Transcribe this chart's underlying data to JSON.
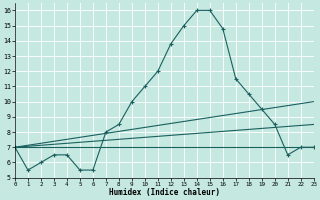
{
  "xlabel": "Humidex (Indice chaleur)",
  "bg_color": "#c5e8e0",
  "grid_color": "#ffffff",
  "line_color": "#1a6060",
  "line1_x": [
    0,
    1,
    2,
    3,
    4,
    5,
    6,
    7,
    8,
    9,
    10,
    11,
    12,
    13,
    14,
    15,
    16,
    17,
    18,
    19,
    20,
    21,
    22,
    23
  ],
  "line1_y": [
    7.0,
    5.5,
    6.0,
    6.5,
    6.5,
    5.5,
    5.5,
    8.0,
    8.5,
    10.0,
    11.0,
    12.0,
    13.8,
    15.0,
    16.0,
    16.0,
    14.8,
    11.5,
    10.5,
    9.5,
    8.5,
    6.5,
    7.0,
    7.0
  ],
  "line2_x": [
    0,
    23
  ],
  "line2_y": [
    7.0,
    10.0
  ],
  "line3_x": [
    0,
    23
  ],
  "line3_y": [
    7.0,
    8.5
  ],
  "line4_x": [
    0,
    23
  ],
  "line4_y": [
    7.0,
    7.0
  ],
  "xlim": [
    0,
    23
  ],
  "ylim": [
    5,
    16.5
  ],
  "yticks": [
    5,
    6,
    7,
    8,
    9,
    10,
    11,
    12,
    13,
    14,
    15,
    16
  ],
  "xticks": [
    0,
    1,
    2,
    3,
    4,
    5,
    6,
    7,
    8,
    9,
    10,
    11,
    12,
    13,
    14,
    15,
    16,
    17,
    18,
    19,
    20,
    21,
    22,
    23
  ]
}
